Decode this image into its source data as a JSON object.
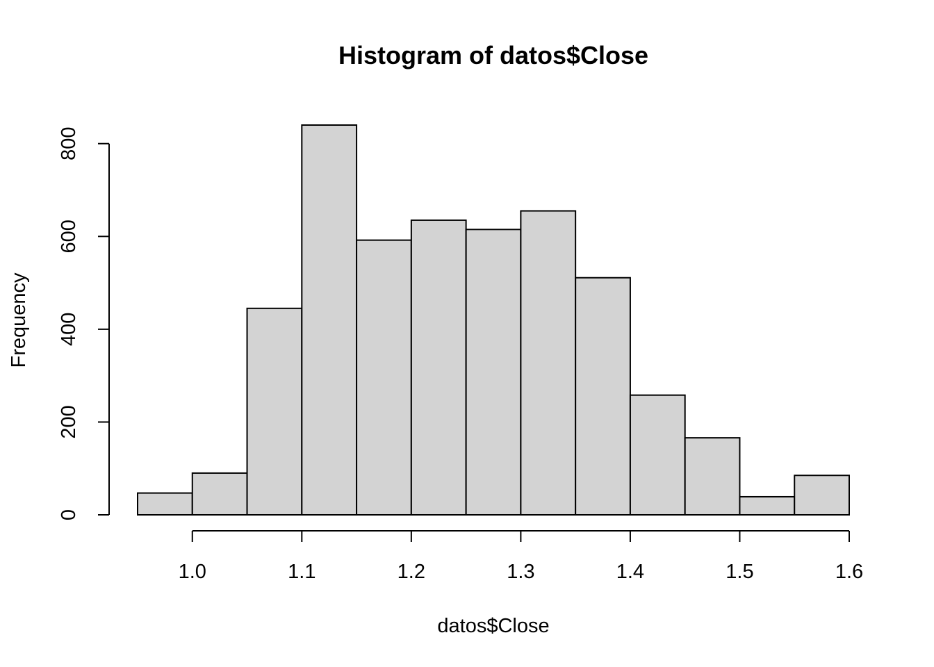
{
  "chart_data": {
    "type": "bar",
    "subtype": "histogram",
    "title": "Histogram of datos$Close",
    "xlabel": "datos$Close",
    "ylabel": "Frequency",
    "bins": [
      {
        "x0": 0.95,
        "x1": 1.0,
        "count": 47
      },
      {
        "x0": 1.0,
        "x1": 1.05,
        "count": 90
      },
      {
        "x0": 1.05,
        "x1": 1.1,
        "count": 445
      },
      {
        "x0": 1.1,
        "x1": 1.15,
        "count": 840
      },
      {
        "x0": 1.15,
        "x1": 1.2,
        "count": 592
      },
      {
        "x0": 1.2,
        "x1": 1.25,
        "count": 635
      },
      {
        "x0": 1.25,
        "x1": 1.3,
        "count": 615
      },
      {
        "x0": 1.3,
        "x1": 1.35,
        "count": 655
      },
      {
        "x0": 1.35,
        "x1": 1.4,
        "count": 511
      },
      {
        "x0": 1.4,
        "x1": 1.45,
        "count": 258
      },
      {
        "x0": 1.45,
        "x1": 1.5,
        "count": 166
      },
      {
        "x0": 1.5,
        "x1": 1.55,
        "count": 39
      },
      {
        "x0": 1.55,
        "x1": 1.6,
        "count": 85
      }
    ],
    "xlim": [
      0.95,
      1.6
    ],
    "ylim": [
      0,
      840
    ],
    "xticks": [
      1.0,
      1.1,
      1.2,
      1.3,
      1.4,
      1.5,
      1.6
    ],
    "xtick_labels": [
      "1.0",
      "1.1",
      "1.2",
      "1.3",
      "1.4",
      "1.5",
      "1.6"
    ],
    "yticks": [
      0,
      200,
      400,
      600,
      800
    ],
    "ytick_labels": [
      "0",
      "200",
      "400",
      "600",
      "800"
    ],
    "grid": false,
    "bar_fill": "#d3d3d3",
    "bar_stroke": "#000000"
  }
}
